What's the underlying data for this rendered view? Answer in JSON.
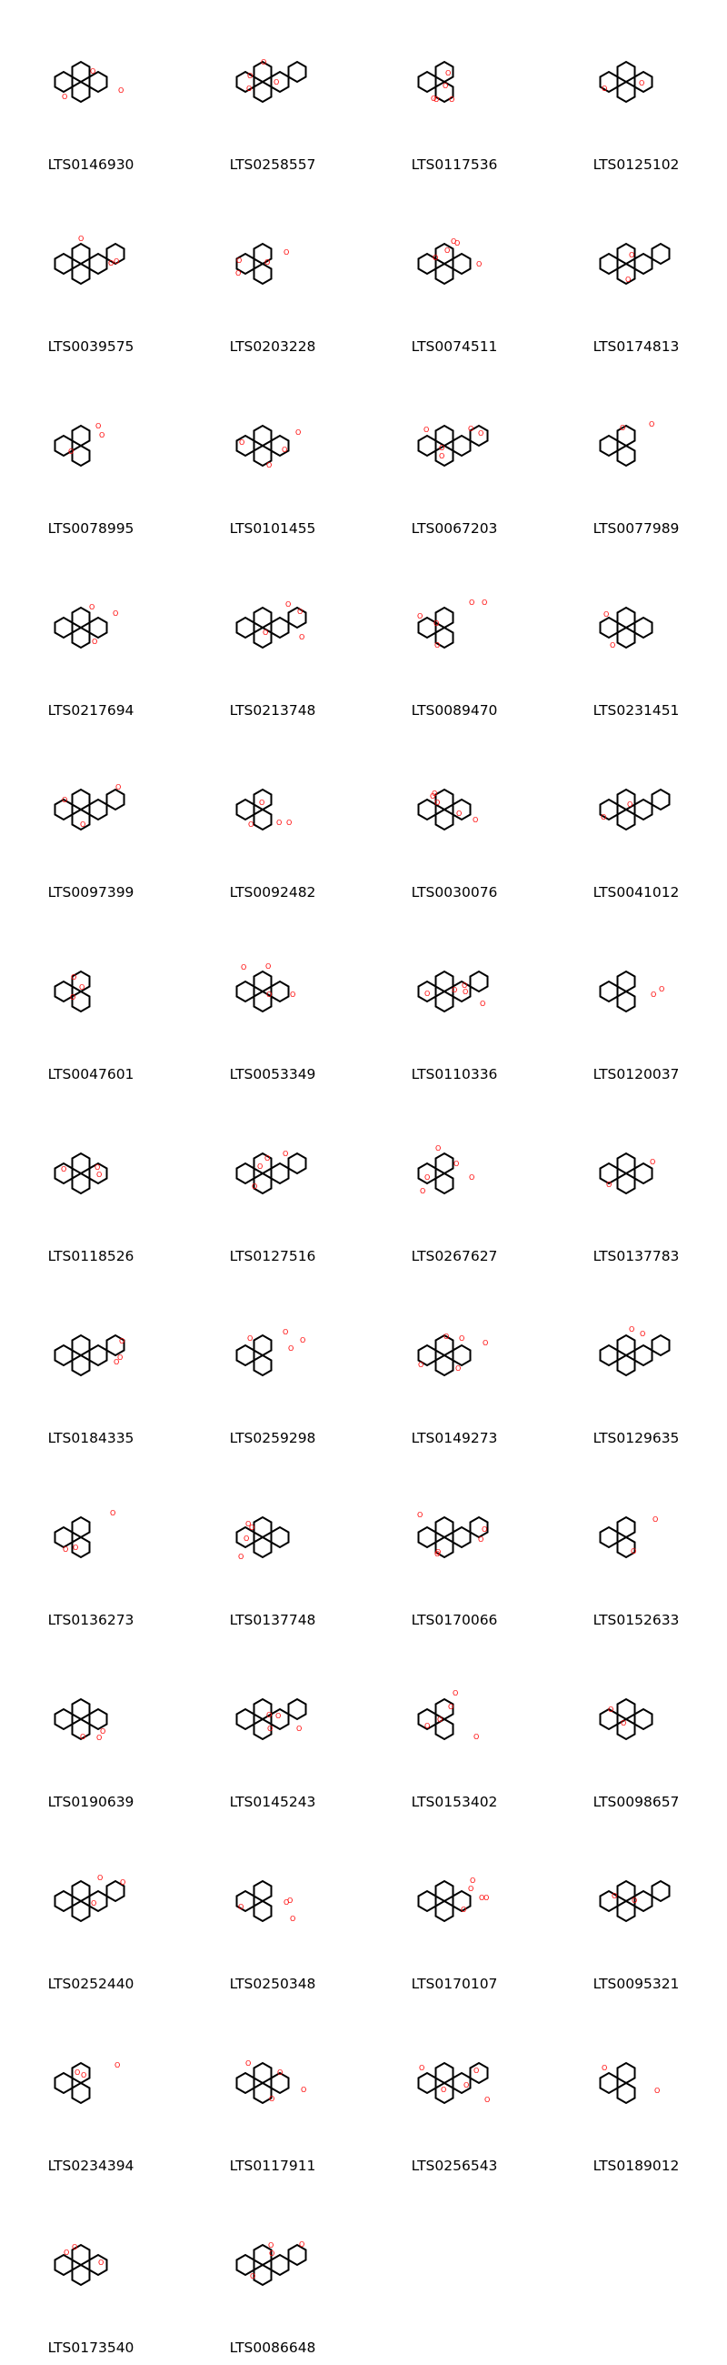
{
  "molecules": [
    {
      "id": "LTS0146930",
      "icon": "molecule-structure-icon"
    },
    {
      "id": "LTS0258557",
      "icon": "molecule-structure-icon"
    },
    {
      "id": "LTS0117536",
      "icon": "molecule-structure-icon"
    },
    {
      "id": "LTS0125102",
      "icon": "molecule-structure-icon"
    },
    {
      "id": "LTS0039575",
      "icon": "molecule-structure-icon"
    },
    {
      "id": "LTS0203228",
      "icon": "molecule-structure-icon"
    },
    {
      "id": "LTS0074511",
      "icon": "molecule-structure-icon"
    },
    {
      "id": "LTS0174813",
      "icon": "molecule-structure-icon"
    },
    {
      "id": "LTS0078995",
      "icon": "molecule-structure-icon"
    },
    {
      "id": "LTS0101455",
      "icon": "molecule-structure-icon"
    },
    {
      "id": "LTS0067203",
      "icon": "molecule-structure-icon"
    },
    {
      "id": "LTS0077989",
      "icon": "molecule-structure-icon"
    },
    {
      "id": "LTS0217694",
      "icon": "molecule-structure-icon"
    },
    {
      "id": "LTS0213748",
      "icon": "molecule-structure-icon"
    },
    {
      "id": "LTS0089470",
      "icon": "molecule-structure-icon"
    },
    {
      "id": "LTS0231451",
      "icon": "molecule-structure-icon"
    },
    {
      "id": "LTS0097399",
      "icon": "molecule-structure-icon"
    },
    {
      "id": "LTS0092482",
      "icon": "molecule-structure-icon"
    },
    {
      "id": "LTS0030076",
      "icon": "molecule-structure-icon"
    },
    {
      "id": "LTS0041012",
      "icon": "molecule-structure-icon"
    },
    {
      "id": "LTS0047601",
      "icon": "molecule-structure-icon"
    },
    {
      "id": "LTS0053349",
      "icon": "molecule-structure-icon"
    },
    {
      "id": "LTS0110336",
      "icon": "molecule-structure-icon"
    },
    {
      "id": "LTS0120037",
      "icon": "molecule-structure-icon"
    },
    {
      "id": "LTS0118526",
      "icon": "molecule-structure-icon"
    },
    {
      "id": "LTS0127516",
      "icon": "molecule-structure-icon"
    },
    {
      "id": "LTS0267627",
      "icon": "molecule-structure-icon"
    },
    {
      "id": "LTS0137783",
      "icon": "molecule-structure-icon"
    },
    {
      "id": "LTS0184335",
      "icon": "molecule-structure-icon"
    },
    {
      "id": "LTS0259298",
      "icon": "molecule-structure-icon"
    },
    {
      "id": "LTS0149273",
      "icon": "molecule-structure-icon"
    },
    {
      "id": "LTS0129635",
      "icon": "molecule-structure-icon"
    },
    {
      "id": "LTS0136273",
      "icon": "molecule-structure-icon"
    },
    {
      "id": "LTS0137748",
      "icon": "molecule-structure-icon"
    },
    {
      "id": "LTS0170066",
      "icon": "molecule-structure-icon"
    },
    {
      "id": "LTS0152633",
      "icon": "molecule-structure-icon"
    },
    {
      "id": "LTS0190639",
      "icon": "molecule-structure-icon"
    },
    {
      "id": "LTS0145243",
      "icon": "molecule-structure-icon"
    },
    {
      "id": "LTS0153402",
      "icon": "molecule-structure-icon"
    },
    {
      "id": "LTS0098657",
      "icon": "molecule-structure-icon"
    },
    {
      "id": "LTS0252440",
      "icon": "molecule-structure-icon"
    },
    {
      "id": "LTS0250348",
      "icon": "molecule-structure-icon"
    },
    {
      "id": "LTS0170107",
      "icon": "molecule-structure-icon"
    },
    {
      "id": "LTS0095321",
      "icon": "molecule-structure-icon"
    },
    {
      "id": "LTS0234394",
      "icon": "molecule-structure-icon"
    },
    {
      "id": "LTS0117911",
      "icon": "molecule-structure-icon"
    },
    {
      "id": "LTS0256543",
      "icon": "molecule-structure-icon"
    },
    {
      "id": "LTS0189012",
      "icon": "molecule-structure-icon"
    },
    {
      "id": "LTS0173540",
      "icon": "molecule-structure-icon"
    },
    {
      "id": "LTS0086648",
      "icon": "molecule-structure-icon"
    }
  ],
  "colors": {
    "bond": "#000000",
    "oxygen": "#ff0000",
    "chlorine": "#00cc00",
    "label": "#000000",
    "background": "#ffffff"
  }
}
